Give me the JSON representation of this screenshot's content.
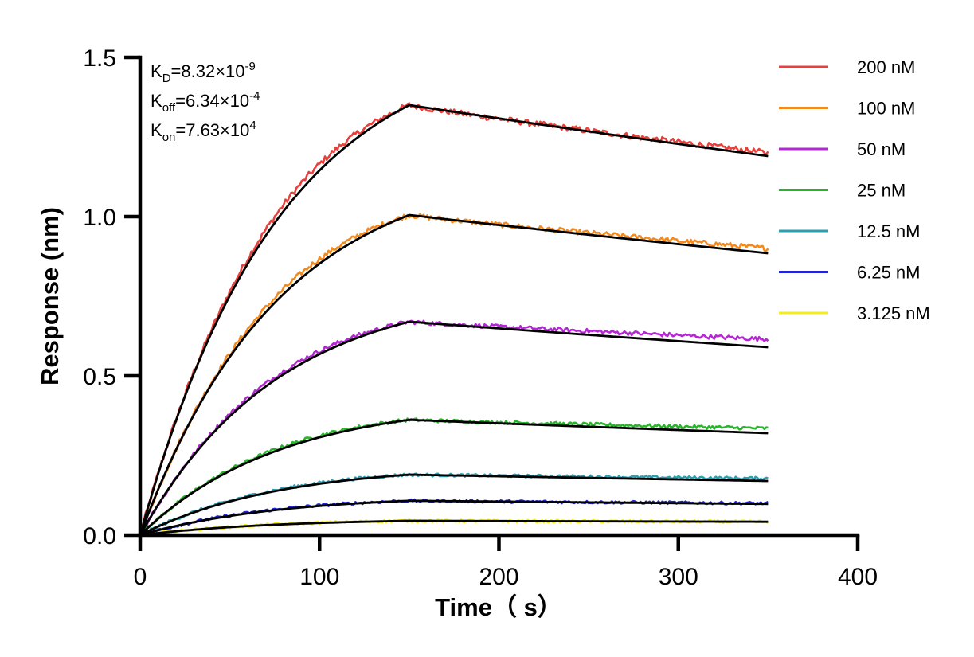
{
  "chart_data": {
    "type": "line",
    "xlabel": "Time（ s）",
    "ylabel": "Response (nm)",
    "xlim": [
      0,
      400
    ],
    "ylim": [
      0,
      1.5
    ],
    "x_ticks": [
      "0",
      "100",
      "200",
      "300",
      "400"
    ],
    "y_ticks": [
      "0.0",
      "0.5",
      "1.0",
      "1.5"
    ],
    "grid": false,
    "legend_position": "right",
    "association_end_s": 150,
    "dissociation_end_s": 350,
    "kinetics": [
      {
        "base": "K",
        "sub": "D",
        "value": "=8.32×10",
        "exp": "-9"
      },
      {
        "base": "K",
        "sub": "off",
        "value": "=6.34×10",
        "exp": "-4"
      },
      {
        "base": "K",
        "sub": "on",
        "value": "=7.63×10",
        "exp": "4"
      }
    ],
    "fit_color": "#000000",
    "series": [
      {
        "name": "200 nM",
        "color": "#e8413c",
        "plateau": 1.35,
        "end": 1.19,
        "observed_end": 1.2
      },
      {
        "name": "100 nM",
        "color": "#f28a1e",
        "plateau": 1.005,
        "end": 0.885,
        "observed_end": 0.9
      },
      {
        "name": "50 nM",
        "color": "#b526d4",
        "plateau": 0.67,
        "end": 0.59,
        "observed_end": 0.615
      },
      {
        "name": "25 nM",
        "color": "#27b52a",
        "plateau": 0.362,
        "end": 0.32,
        "observed_end": 0.335
      },
      {
        "name": "12.5 nM",
        "color": "#2a9fb0",
        "plateau": 0.19,
        "end": 0.17,
        "observed_end": 0.178
      },
      {
        "name": "6.25 nM",
        "color": "#1f24d0",
        "plateau": 0.108,
        "end": 0.098,
        "observed_end": 0.1
      },
      {
        "name": "3.125 nM",
        "color": "#f4ec1c",
        "plateau": 0.045,
        "end": 0.042,
        "observed_end": 0.042
      }
    ]
  }
}
